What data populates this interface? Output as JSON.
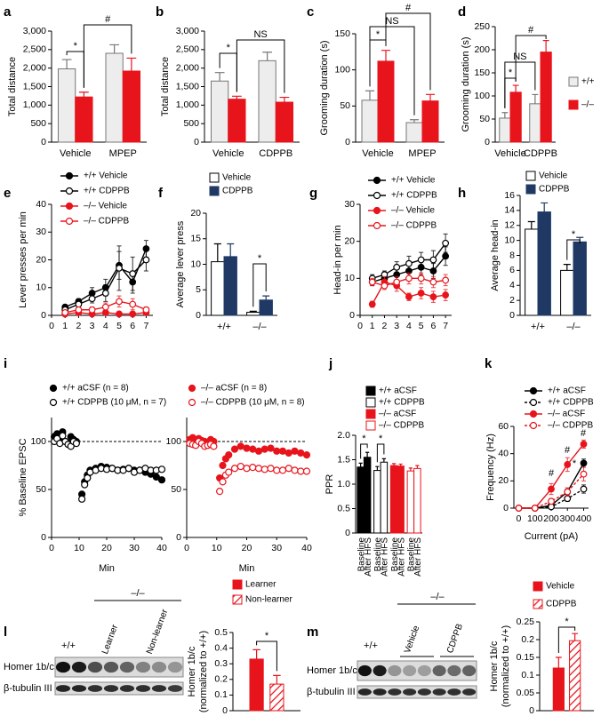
{
  "chart_data": [
    {
      "type": "bar",
      "panel": "a",
      "ylabel": "Total distance",
      "categories": [
        "Vehicle",
        "MPEP"
      ],
      "series": [
        {
          "color": "#ededed",
          "edgecolor": "#777777",
          "values": [
            1980,
            2400
          ],
          "errors": [
            250,
            230
          ]
        },
        {
          "color": "#e8141c",
          "values": [
            1220,
            1920
          ],
          "errors": [
            130,
            350
          ]
        }
      ],
      "ylim": [
        0,
        3000
      ],
      "yticks": [
        0,
        500,
        {
          "value": 1000,
          "label": "1,000"
        },
        {
          "value": 1500,
          "label": "1,500"
        },
        {
          "value": 2000,
          "label": "2,000"
        },
        {
          "value": 2500,
          "label": "2,500"
        },
        {
          "value": 3000,
          "label": "3,000"
        }
      ],
      "annotations": [
        "*",
        "#"
      ]
    },
    {
      "type": "bar",
      "panel": "b",
      "ylabel": "Total distance",
      "categories": [
        "Vehicle",
        "CDPPB"
      ],
      "series": [
        {
          "color": "#ededed",
          "edgecolor": "#777777",
          "values": [
            1650,
            2200
          ],
          "errors": [
            230,
            230
          ]
        },
        {
          "color": "#e8141c",
          "values": [
            1160,
            1080
          ],
          "errors": [
            80,
            130
          ]
        }
      ],
      "ylim": [
        0,
        3000
      ],
      "yticks": [
        0,
        500,
        {
          "value": 1000,
          "label": "1,000"
        },
        {
          "value": 1500,
          "label": "1,500"
        },
        {
          "value": 2000,
          "label": "2,000"
        },
        {
          "value": 2500,
          "label": "2,500"
        },
        {
          "value": 3000,
          "label": "3,000"
        }
      ],
      "annotations": [
        "*",
        "NS"
      ]
    },
    {
      "type": "bar",
      "panel": "c",
      "ylabel": "Grooming duration (s)",
      "categories": [
        "Vehicle",
        "MPEP"
      ],
      "series": [
        {
          "color": "#ededed",
          "edgecolor": "#777777",
          "values": [
            58,
            27
          ],
          "errors": [
            13,
            4
          ]
        },
        {
          "color": "#e8141c",
          "values": [
            112,
            57
          ],
          "errors": [
            15,
            9
          ]
        }
      ],
      "ylim": [
        0,
        150
      ],
      "yticks": [
        0,
        50,
        100,
        150
      ],
      "annotations": [
        "*",
        "NS",
        "#"
      ]
    },
    {
      "type": "bar",
      "panel": "d",
      "ylabel": "Grooming duration (s)",
      "categories": [
        "Vehicle",
        "CDPPB"
      ],
      "series": [
        {
          "name": "+/+",
          "color": "#ededed",
          "edgecolor": "#777777",
          "values": [
            52,
            83
          ],
          "errors": [
            12,
            20
          ]
        },
        {
          "name": "–/–",
          "color": "#e8141c",
          "values": [
            108,
            195
          ],
          "errors": [
            15,
            25
          ]
        }
      ],
      "ylim": [
        0,
        250
      ],
      "yticks": [
        0,
        50,
        100,
        150,
        200,
        250
      ],
      "legend": "right",
      "annotations": [
        "*",
        "NS",
        "#"
      ]
    },
    {
      "type": "line",
      "panel": "e",
      "ylabel": "Lever presses per min",
      "x": [
        1,
        2,
        3,
        4,
        5,
        6,
        7
      ],
      "xlim": [
        0,
        7.5
      ],
      "xticks": [
        0,
        1,
        2,
        3,
        4,
        5,
        6,
        7
      ],
      "ylim": [
        0,
        40
      ],
      "yticks": [
        0,
        10,
        20,
        30,
        40
      ],
      "legend": "upper left",
      "series": [
        {
          "name": "+/+ Vehicle",
          "color": "#000000",
          "marker": "filled",
          "values": [
            3,
            5,
            8,
            10,
            18,
            12,
            24
          ],
          "errors": [
            0.5,
            1,
            2,
            3,
            5,
            4,
            3
          ]
        },
        {
          "name": "+/+ CDPPB",
          "color": "#000000",
          "marker": "open",
          "values": [
            2,
            4,
            6,
            8,
            17,
            15,
            20
          ],
          "errors": [
            0.5,
            1,
            1.5,
            3,
            8,
            6,
            4
          ]
        },
        {
          "name": "–/– Vehicle",
          "color": "#e8141c",
          "marker": "filled",
          "values": [
            0.5,
            1,
            0.5,
            1,
            0.5,
            0.5,
            1
          ],
          "errors": [
            0.3,
            0.5,
            0.3,
            0.5,
            0.3,
            0.3,
            0.5
          ]
        },
        {
          "name": "–/– CDPPB",
          "color": "#e8141c",
          "marker": "open",
          "values": [
            1,
            2,
            2,
            3,
            5,
            4,
            2
          ],
          "errors": [
            0.5,
            1,
            1,
            1.5,
            2,
            2,
            1
          ]
        }
      ]
    },
    {
      "type": "bar",
      "panel": "f",
      "ylabel": "Average lever press",
      "categories": [
        "+/+",
        "–/–"
      ],
      "series": [
        {
          "name": "Vehicle",
          "color": "#ffffff",
          "edgecolor": "#000000",
          "values": [
            10.5,
            0.6
          ],
          "errors": [
            3.5,
            0.2
          ]
        },
        {
          "name": "CDPPB",
          "color": "#1f3864",
          "values": [
            11.5,
            3
          ],
          "errors": [
            2.5,
            0.8
          ]
        }
      ],
      "ylim": [
        0,
        20
      ],
      "yticks": [
        0,
        5,
        10,
        15,
        20
      ],
      "legend": "top",
      "annotations": [
        "*"
      ]
    },
    {
      "type": "line",
      "panel": "g",
      "ylabel": "Head-in per min",
      "x": [
        1,
        2,
        3,
        4,
        5,
        6,
        7
      ],
      "xlim": [
        0,
        7.5
      ],
      "xticks": [
        0,
        1,
        2,
        3,
        4,
        5,
        6,
        7
      ],
      "ylim": [
        0,
        30
      ],
      "yticks": [
        0,
        10,
        20,
        30
      ],
      "legend": "upper left",
      "series": [
        {
          "name": "+/+ Vehicle",
          "color": "#000000",
          "marker": "filled",
          "values": [
            9,
            10,
            11,
            12,
            13,
            12,
            16
          ],
          "errors": [
            1,
            1,
            1.5,
            1.5,
            2,
            2,
            2.5
          ]
        },
        {
          "name": "+/+ CDPPB",
          "color": "#000000",
          "marker": "open",
          "values": [
            10,
            11,
            13,
            14,
            15,
            15,
            19.5
          ],
          "errors": [
            1,
            1,
            1.5,
            2,
            2,
            2.5,
            2.5
          ]
        },
        {
          "name": "–/– Vehicle",
          "color": "#e8141c",
          "marker": "filled",
          "values": [
            3,
            9,
            8,
            5,
            6,
            5,
            5.5
          ],
          "errors": [
            0.8,
            1.5,
            1.5,
            1,
            1.5,
            1.5,
            1.5
          ]
        },
        {
          "name": "–/– CDPPB",
          "color": "#e8141c",
          "marker": "open",
          "values": [
            9,
            8,
            9,
            10,
            10,
            9,
            9.5
          ],
          "errors": [
            1,
            1,
            1.5,
            1.5,
            1.5,
            1.5,
            1.5
          ]
        }
      ]
    },
    {
      "type": "bar",
      "panel": "h",
      "ylabel": "Average head-in",
      "categories": [
        "+/+",
        "–/–"
      ],
      "series": [
        {
          "name": "Vehicle",
          "color": "#ffffff",
          "edgecolor": "#000000",
          "values": [
            11.5,
            6
          ],
          "errors": [
            1,
            0.8
          ]
        },
        {
          "name": "CDPPB",
          "color": "#1f3864",
          "values": [
            13.8,
            9.8
          ],
          "errors": [
            1.2,
            0.6
          ]
        }
      ],
      "ylim": [
        0,
        16
      ],
      "yticks": [
        0,
        2,
        4,
        6,
        8,
        10,
        12,
        14,
        16
      ],
      "legend": "top",
      "annotations": [
        "*"
      ]
    },
    {
      "type": "scatter",
      "panel": "i",
      "ylabel": "% Baseline EPSC",
      "xlabel": "Min",
      "x": [
        1,
        2,
        3,
        4,
        5,
        6,
        7,
        8,
        9,
        11,
        12,
        13,
        14,
        16,
        18,
        20,
        22,
        24,
        26,
        28,
        30,
        32,
        34,
        36,
        38,
        40
      ],
      "xlim": [
        0,
        40
      ],
      "xticks": [
        0,
        10,
        20,
        30,
        40
      ],
      "ylim": [
        0,
        125
      ],
      "yticks": [
        0,
        50,
        100
      ],
      "hline": 100,
      "legend": "top",
      "series": [
        {
          "name": "+/+ aCSF (n = 8)",
          "color": "#000000",
          "marker": "filled",
          "values": [
            105,
            108,
            104,
            110,
            100,
            98,
            105,
            102,
            100,
            45,
            58,
            65,
            70,
            72,
            74,
            73,
            72,
            70,
            71,
            72,
            70,
            70,
            68,
            66,
            63,
            60
          ]
        },
        {
          "name": "+/+ CDPPB (10 μM, n = 7)",
          "color": "#000000",
          "marker": "open",
          "values": [
            100,
            103,
            98,
            106,
            100,
            97,
            95,
            100,
            98,
            40,
            55,
            62,
            68,
            70,
            72,
            71,
            72,
            70,
            70,
            72,
            68,
            70,
            72,
            70,
            70,
            71
          ]
        }
      ]
    },
    {
      "type": "scatter",
      "xlabel": "Min",
      "x": [
        1,
        2,
        3,
        4,
        5,
        6,
        7,
        8,
        9,
        11,
        12,
        13,
        14,
        16,
        18,
        20,
        22,
        24,
        26,
        28,
        30,
        32,
        34,
        36,
        38,
        40
      ],
      "xlim": [
        0,
        40
      ],
      "xticks": [
        0,
        10,
        20,
        30,
        40
      ],
      "ylim": [
        0,
        125
      ],
      "yticks": [
        0,
        50,
        100
      ],
      "hline": 100,
      "legend": "top",
      "series": [
        {
          "name": "–/– aCSF (n = 8)",
          "color": "#e8141c",
          "marker": "filled",
          "values": [
            102,
            104,
            100,
            103,
            101,
            100,
            99,
            102,
            100,
            62,
            75,
            82,
            86,
            92,
            95,
            93,
            92,
            90,
            92,
            93,
            90,
            90,
            88,
            90,
            88,
            86
          ]
        },
        {
          "name": "–/– CDPPB (10 μM, n = 8)",
          "color": "#e8141c",
          "marker": "open",
          "values": [
            98,
            97,
            96,
            100,
            98,
            95,
            96,
            97,
            95,
            48,
            58,
            65,
            68,
            72,
            74,
            72,
            73,
            72,
            71,
            72,
            70,
            70,
            72,
            70,
            69,
            69
          ]
        }
      ]
    },
    {
      "type": "bar",
      "panel": "j",
      "ylabel": "PPR",
      "group_by": "series",
      "categories": [
        "Baseline",
        "After HFS"
      ],
      "series": [
        {
          "name": "+/+ aCSF",
          "color": "#000000",
          "values": [
            1.35,
            1.55
          ],
          "errors": [
            0.08,
            0.1
          ]
        },
        {
          "name": "+/+ CDPPB",
          "color": "#ffffff",
          "edgecolor": "#000000",
          "values": [
            1.28,
            1.45
          ],
          "errors": [
            0.08,
            0.07
          ]
        },
        {
          "name": "–/– aCSF",
          "color": "#e8141c",
          "values": [
            1.38,
            1.37
          ],
          "errors": [
            0.04,
            0.04
          ]
        },
        {
          "name": "–/– CDPPB",
          "color": "#ffffff",
          "edgecolor": "#e8141c",
          "values": [
            1.27,
            1.32
          ],
          "errors": [
            0.06,
            0.06
          ]
        }
      ],
      "ylim": [
        0,
        2
      ],
      "yticks": [
        0,
        0.5,
        {
          "value": 1,
          "label": "1.0"
        },
        1.5,
        {
          "value": 2,
          "label": "2.0"
        }
      ],
      "legend": "top",
      "annotations": [
        "*",
        "*"
      ]
    },
    {
      "type": "line",
      "panel": "k",
      "ylabel": "Frequency (Hz)",
      "xlabel": "Current (pA)",
      "x": [
        0,
        100,
        200,
        300,
        400
      ],
      "xlim": [
        -30,
        430
      ],
      "xticks": [
        0,
        100,
        200,
        300,
        400
      ],
      "ylim": [
        0,
        60
      ],
      "yticks": [
        0,
        20,
        40,
        60
      ],
      "legend": "top",
      "series": [
        {
          "name": "+/+ aCSF",
          "color": "#000000",
          "marker": "filled",
          "values": [
            0,
            0,
            2,
            12,
            33
          ],
          "errors": [
            0,
            0,
            1,
            2,
            3
          ]
        },
        {
          "name": "+/+ CDPPB",
          "color": "#000000",
          "marker": "open",
          "dash": true,
          "values": [
            0,
            0,
            1,
            7,
            14
          ],
          "errors": [
            0,
            0,
            1,
            2,
            3
          ]
        },
        {
          "name": "–/– aCSF",
          "color": "#e8141c",
          "marker": "filled",
          "values": [
            0,
            0,
            14,
            32,
            47
          ],
          "errors": [
            0,
            0,
            4,
            5,
            3
          ]
        },
        {
          "name": "–/– CDPPB",
          "color": "#e8141c",
          "marker": "open",
          "dash": true,
          "values": [
            0,
            0,
            5,
            12,
            25
          ],
          "errors": [
            0,
            0,
            2,
            3,
            5
          ]
        }
      ],
      "annotations": [
        "#",
        "#",
        "#",
        "*"
      ]
    },
    {
      "type": "blot",
      "panel": "l",
      "genotypes": [
        "+/+",
        "–/–"
      ],
      "groups": [
        "Learner",
        "Non-learner"
      ],
      "rows": [
        "Homer 1b/c",
        "β-tubulin III"
      ]
    },
    {
      "type": "bar",
      "ylabel": [
        "Homer 1b/c",
        "(normalized to +/+)"
      ],
      "series": [
        {
          "name": "Learner",
          "color": "#e8141c",
          "values": [
            0.33
          ],
          "errors": [
            0.06
          ]
        },
        {
          "name": "Non-learner",
          "color": "#e8141c",
          "hatch": true,
          "values": [
            0.17
          ],
          "errors": [
            0.055
          ]
        }
      ],
      "ylim": [
        0,
        0.5
      ],
      "yticks": [
        0,
        0.1,
        0.2,
        0.3,
        0.4,
        0.5
      ],
      "legend": "top",
      "annotations": [
        "*"
      ]
    },
    {
      "type": "blot",
      "panel": "m",
      "genotypes": [
        "+/+",
        "–/–"
      ],
      "groups": [
        "Vehicle",
        "CDPPB"
      ],
      "rows": [
        "Homer 1b/c",
        "β-tubulin III"
      ]
    },
    {
      "type": "bar",
      "ylabel": [
        "Homer 1b/c",
        "(normalized to +/+)"
      ],
      "series": [
        {
          "name": "Vehicle",
          "color": "#e8141c",
          "values": [
            0.12
          ],
          "errors": [
            0.03
          ]
        },
        {
          "name": "CDPPB",
          "color": "#e8141c",
          "hatch": true,
          "values": [
            0.197
          ],
          "errors": [
            0.02
          ]
        }
      ],
      "ylim": [
        0,
        0.25
      ],
      "yticks": [
        0,
        0.05,
        0.1,
        0.15,
        0.2,
        0.25
      ],
      "legend": "top",
      "annotations": [
        "*"
      ]
    }
  ]
}
